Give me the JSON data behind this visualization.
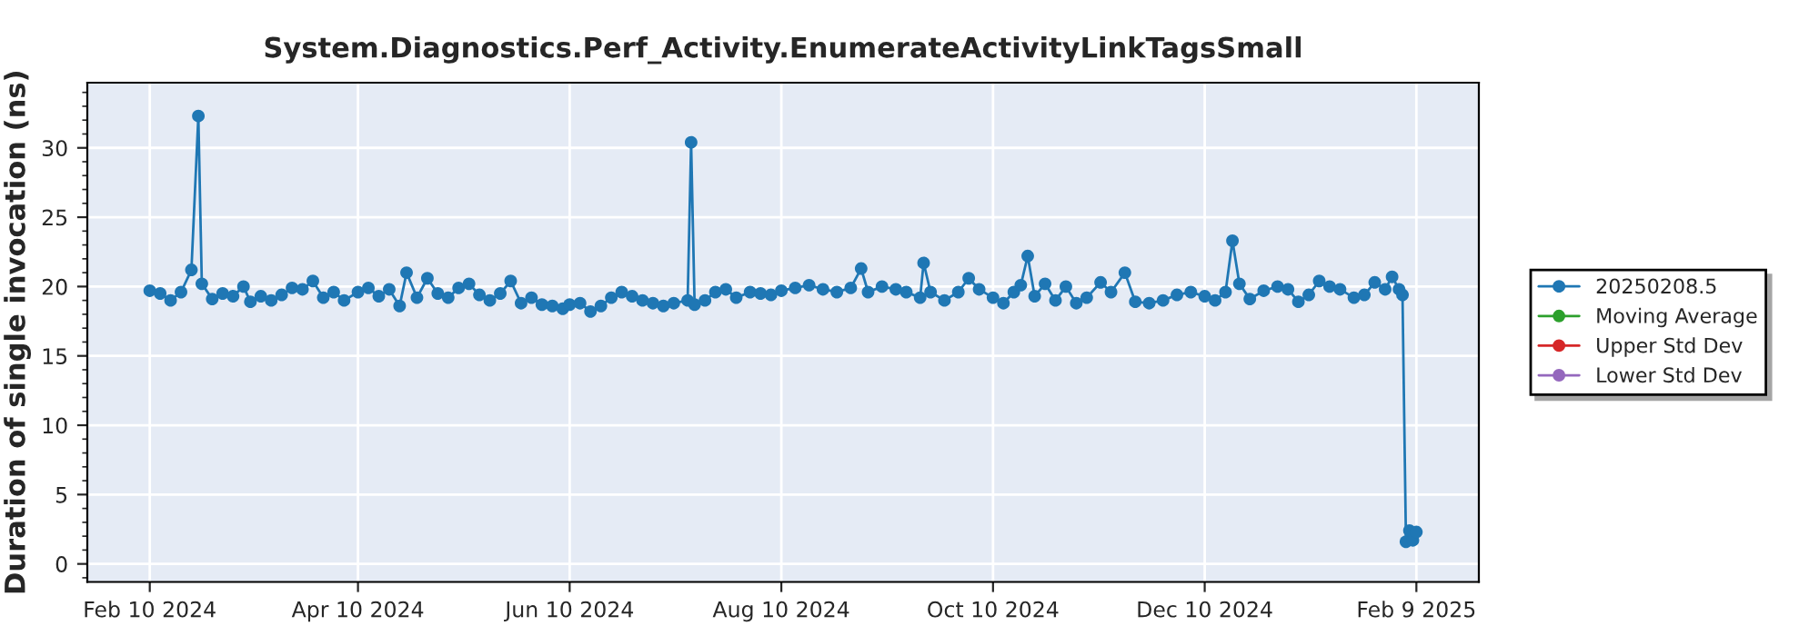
{
  "chart_data": {
    "type": "line",
    "title": "System.Diagnostics.Perf_Activity.EnumerateActivityLinkTagsSmall",
    "ylabel": "Duration of single invocation (ns)",
    "x": [
      "2024-02-10",
      "2024-02-13",
      "2024-02-16",
      "2024-02-19",
      "2024-02-22",
      "2024-02-24",
      "2024-02-25",
      "2024-02-28",
      "2024-03-02",
      "2024-03-05",
      "2024-03-08",
      "2024-03-10",
      "2024-03-13",
      "2024-03-16",
      "2024-03-19",
      "2024-03-22",
      "2024-03-25",
      "2024-03-28",
      "2024-03-31",
      "2024-04-03",
      "2024-04-06",
      "2024-04-10",
      "2024-04-13",
      "2024-04-16",
      "2024-04-19",
      "2024-04-22",
      "2024-04-24",
      "2024-04-27",
      "2024-04-30",
      "2024-05-03",
      "2024-05-06",
      "2024-05-09",
      "2024-05-12",
      "2024-05-15",
      "2024-05-18",
      "2024-05-21",
      "2024-05-24",
      "2024-05-27",
      "2024-05-30",
      "2024-06-02",
      "2024-06-05",
      "2024-06-08",
      "2024-06-10",
      "2024-06-13",
      "2024-06-16",
      "2024-06-19",
      "2024-06-22",
      "2024-06-25",
      "2024-06-28",
      "2024-07-01",
      "2024-07-04",
      "2024-07-07",
      "2024-07-10",
      "2024-07-14",
      "2024-07-15",
      "2024-07-16",
      "2024-07-19",
      "2024-07-22",
      "2024-07-25",
      "2024-07-28",
      "2024-08-01",
      "2024-08-04",
      "2024-08-07",
      "2024-08-10",
      "2024-08-14",
      "2024-08-18",
      "2024-08-22",
      "2024-08-26",
      "2024-08-30",
      "2024-09-02",
      "2024-09-04",
      "2024-09-08",
      "2024-09-12",
      "2024-09-15",
      "2024-09-19",
      "2024-09-20",
      "2024-09-22",
      "2024-09-26",
      "2024-09-30",
      "2024-10-03",
      "2024-10-06",
      "2024-10-10",
      "2024-10-13",
      "2024-10-16",
      "2024-10-18",
      "2024-10-20",
      "2024-10-22",
      "2024-10-25",
      "2024-10-28",
      "2024-10-31",
      "2024-11-03",
      "2024-11-06",
      "2024-11-10",
      "2024-11-13",
      "2024-11-17",
      "2024-11-20",
      "2024-11-24",
      "2024-11-28",
      "2024-12-02",
      "2024-12-06",
      "2024-12-10",
      "2024-12-13",
      "2024-12-16",
      "2024-12-18",
      "2024-12-20",
      "2024-12-23",
      "2024-12-27",
      "2024-12-31",
      "2025-01-03",
      "2025-01-06",
      "2025-01-09",
      "2025-01-12",
      "2025-01-15",
      "2025-01-18",
      "2025-01-22",
      "2025-01-25",
      "2025-01-28",
      "2025-01-31",
      "2025-02-02",
      "2025-02-04",
      "2025-02-05",
      "2025-02-06",
      "2025-02-07",
      "2025-02-08",
      "2025-02-09"
    ],
    "series": [
      {
        "name": "20250208.5",
        "color": "#1f77b4",
        "values": [
          19.7,
          19.5,
          19.0,
          19.6,
          21.2,
          32.3,
          20.2,
          19.1,
          19.5,
          19.3,
          20.0,
          18.9,
          19.3,
          19.0,
          19.4,
          19.9,
          19.8,
          20.4,
          19.2,
          19.6,
          19.0,
          19.6,
          19.9,
          19.3,
          19.8,
          18.6,
          21.0,
          19.2,
          20.6,
          19.5,
          19.2,
          19.9,
          20.2,
          19.4,
          19.0,
          19.5,
          20.4,
          18.8,
          19.2,
          18.7,
          18.6,
          18.4,
          18.7,
          18.8,
          18.2,
          18.6,
          19.2,
          19.6,
          19.3,
          19.0,
          18.8,
          18.6,
          18.8,
          19.0,
          30.4,
          18.7,
          19.0,
          19.6,
          19.8,
          19.2,
          19.6,
          19.5,
          19.4,
          19.7,
          19.9,
          20.1,
          19.8,
          19.6,
          19.9,
          21.3,
          19.6,
          20.0,
          19.8,
          19.6,
          19.2,
          21.7,
          19.6,
          19.0,
          19.6,
          20.6,
          19.8,
          19.2,
          18.8,
          19.6,
          20.1,
          22.2,
          19.3,
          20.2,
          19.0,
          20.0,
          18.8,
          19.2,
          20.3,
          19.6,
          21.0,
          18.9,
          18.8,
          19.0,
          19.4,
          19.6,
          19.3,
          19.0,
          19.6,
          23.3,
          20.2,
          19.1,
          19.7,
          20.0,
          19.8,
          18.9,
          19.4,
          20.4,
          20.0,
          19.8,
          19.2,
          19.4,
          20.3,
          19.8,
          20.7,
          19.8,
          19.4,
          1.6,
          2.4,
          1.7,
          2.3
        ]
      },
      {
        "name": "Moving Average",
        "color": "#2ca02c",
        "values": [
          null,
          null,
          null,
          null,
          null,
          null,
          null,
          null,
          null,
          null,
          null,
          null,
          null,
          null,
          null,
          null,
          null,
          null,
          null,
          null,
          null,
          null,
          null,
          null,
          null,
          null,
          null,
          null,
          null,
          null,
          null,
          null,
          null,
          null,
          null,
          null,
          null,
          null,
          null,
          null,
          null,
          null,
          null,
          null,
          null,
          null,
          null,
          null,
          null,
          null,
          null,
          null,
          null,
          null,
          null,
          null,
          null,
          null,
          null,
          null,
          null,
          null,
          null,
          null,
          null,
          null,
          null,
          null,
          null,
          null,
          null,
          null,
          null,
          null,
          null,
          null,
          null,
          null,
          null,
          null,
          null,
          null,
          null,
          null,
          null,
          null,
          null,
          null,
          null,
          null,
          null,
          null,
          null,
          null,
          null,
          null,
          null,
          null,
          null,
          null,
          null,
          null,
          null,
          null,
          null,
          null,
          null,
          null,
          null,
          null,
          null,
          null,
          null,
          null,
          null,
          null,
          null,
          null,
          null,
          null,
          null,
          null,
          null,
          null,
          null
        ]
      },
      {
        "name": "Upper Std Dev",
        "color": "#d62728",
        "values": [
          null,
          null,
          null,
          null,
          null,
          null,
          null,
          null,
          null,
          null,
          null,
          null,
          null,
          null,
          null,
          null,
          null,
          null,
          null,
          null,
          null,
          null,
          null,
          null,
          null,
          null,
          null,
          null,
          null,
          null,
          null,
          null,
          null,
          null,
          null,
          null,
          null,
          null,
          null,
          null,
          null,
          null,
          null,
          null,
          null,
          null,
          null,
          null,
          null,
          null,
          null,
          null,
          null,
          null,
          null,
          null,
          null,
          null,
          null,
          null,
          null,
          null,
          null,
          null,
          null,
          null,
          null,
          null,
          null,
          null,
          null,
          null,
          null,
          null,
          null,
          null,
          null,
          null,
          null,
          null,
          null,
          null,
          null,
          null,
          null,
          null,
          null,
          null,
          null,
          null,
          null,
          null,
          null,
          null,
          null,
          null,
          null,
          null,
          null,
          null,
          null,
          null,
          null,
          null,
          null,
          null,
          null,
          null,
          null,
          null,
          null,
          null,
          null,
          null,
          null,
          null,
          null,
          null,
          null,
          null,
          null,
          null,
          null,
          null,
          null
        ]
      },
      {
        "name": "Lower Std Dev",
        "color": "#9467bd",
        "values": [
          null,
          null,
          null,
          null,
          null,
          null,
          null,
          null,
          null,
          null,
          null,
          null,
          null,
          null,
          null,
          null,
          null,
          null,
          null,
          null,
          null,
          null,
          null,
          null,
          null,
          null,
          null,
          null,
          null,
          null,
          null,
          null,
          null,
          null,
          null,
          null,
          null,
          null,
          null,
          null,
          null,
          null,
          null,
          null,
          null,
          null,
          null,
          null,
          null,
          null,
          null,
          null,
          null,
          null,
          null,
          null,
          null,
          null,
          null,
          null,
          null,
          null,
          null,
          null,
          null,
          null,
          null,
          null,
          null,
          null,
          null,
          null,
          null,
          null,
          null,
          null,
          null,
          null,
          null,
          null,
          null,
          null,
          null,
          null,
          null,
          null,
          null,
          null,
          null,
          null,
          null,
          null,
          null,
          null,
          null,
          null,
          null,
          null,
          null,
          null,
          null,
          null,
          null,
          null,
          null,
          null,
          null,
          null,
          null,
          null,
          null,
          null,
          null,
          null,
          null,
          null,
          null,
          null,
          null,
          null,
          null,
          null,
          null,
          null,
          null
        ]
      }
    ],
    "xlim": [
      "2024-01-23",
      "2025-02-27"
    ],
    "xticks": [
      {
        "value": "2024-02-10",
        "label": "Feb 10 2024"
      },
      {
        "value": "2024-04-10",
        "label": "Apr 10 2024"
      },
      {
        "value": "2024-06-10",
        "label": "Jun 10 2024"
      },
      {
        "value": "2024-08-10",
        "label": "Aug 10 2024"
      },
      {
        "value": "2024-10-10",
        "label": "Oct 10 2024"
      },
      {
        "value": "2024-12-10",
        "label": "Dec 10 2024"
      },
      {
        "value": "2025-02-09",
        "label": "Feb 9 2025"
      }
    ],
    "ylim": [
      -1.3,
      34.7
    ],
    "yticks": [
      0,
      5,
      10,
      15,
      20,
      25,
      30
    ],
    "grid": true,
    "legend": "right",
    "marker": "circle",
    "line_style": "solid"
  }
}
